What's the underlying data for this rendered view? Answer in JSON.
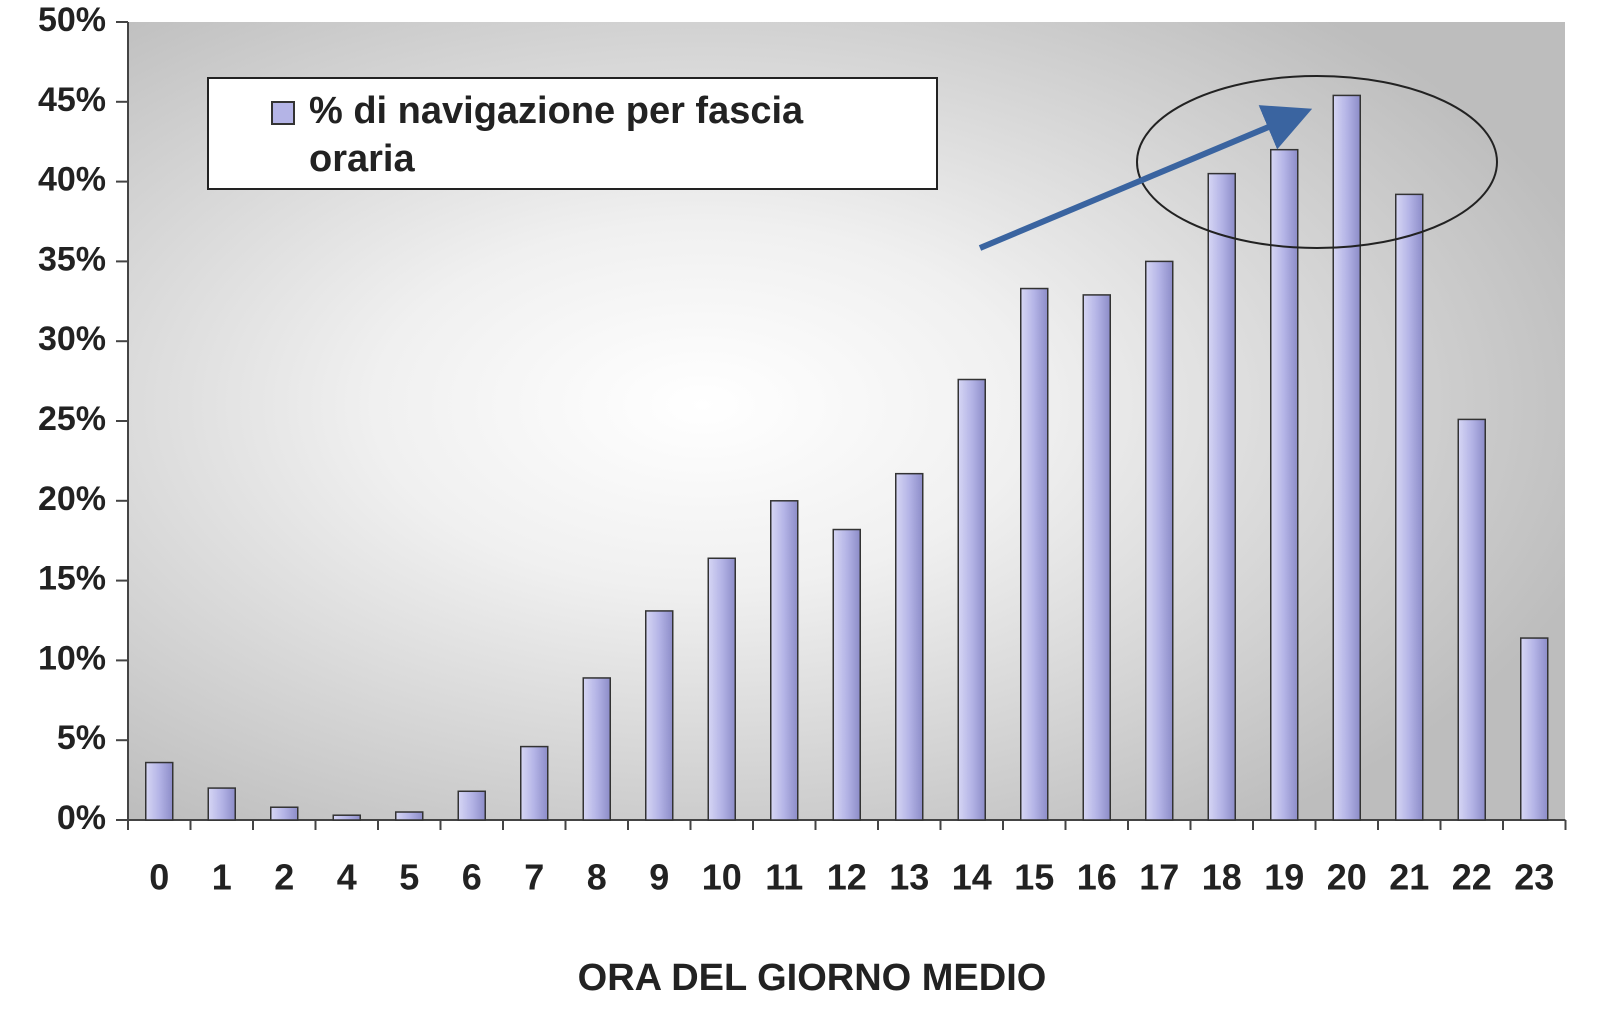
{
  "chart_data": {
    "type": "bar",
    "x_label": "ORA DEL GIORNO MEDIO",
    "categories": [
      "0",
      "1",
      "2",
      "4",
      "5",
      "6",
      "7",
      "8",
      "9",
      "10",
      "11",
      "12",
      "13",
      "14",
      "15",
      "16",
      "17",
      "18",
      "19",
      "20",
      "21",
      "22",
      "23"
    ],
    "series": [
      {
        "name": "% di navigazione per fascia oraria",
        "color": "#b4b4e6",
        "values": [
          3.6,
          2.0,
          0.8,
          0.3,
          0.5,
          1.8,
          4.6,
          8.9,
          13.1,
          16.4,
          20.0,
          18.2,
          21.7,
          27.6,
          33.3,
          32.9,
          35.0,
          40.5,
          42.0,
          45.4,
          39.2,
          25.1,
          11.4
        ]
      }
    ],
    "ylim": [
      0,
      50
    ],
    "yticks": [
      {
        "value": 0,
        "label": "0%"
      },
      {
        "value": 5,
        "label": "5%"
      },
      {
        "value": 10,
        "label": "10%"
      },
      {
        "value": 15,
        "label": "15%"
      },
      {
        "value": 20,
        "label": "20%"
      },
      {
        "value": 25,
        "label": "25%"
      },
      {
        "value": 30,
        "label": "30%"
      },
      {
        "value": 35,
        "label": "35%"
      },
      {
        "value": 40,
        "label": "40%"
      },
      {
        "value": 45,
        "label": "45%"
      },
      {
        "value": 50,
        "label": "50%"
      }
    ],
    "legend": "upper left"
  }
}
